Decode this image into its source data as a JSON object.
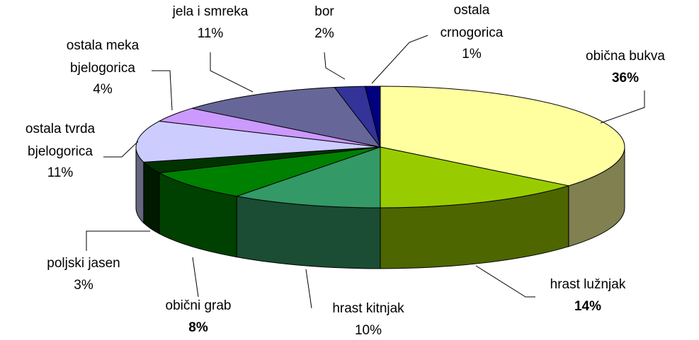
{
  "chart_data": {
    "type": "pie3d",
    "categories": [
      "obična bukva",
      "hrast lužnjak",
      "hrast kitnjak",
      "obični grab",
      "poljski jasen",
      "ostala tvrda bjelogorica",
      "ostala meka bjelogorica",
      "jela i smreka",
      "bor",
      "ostala crnogorica"
    ],
    "values": [
      36,
      14,
      10,
      8,
      3,
      11,
      4,
      11,
      2,
      1
    ],
    "value_labels": [
      "36%",
      "14%",
      "10%",
      "8%",
      "3%",
      "11%",
      "4%",
      "11%",
      "2%",
      "1%"
    ],
    "colors": [
      "#ffffa0",
      "#99cc00",
      "#339966",
      "#008000",
      "#003300",
      "#ccccff",
      "#cc99ff",
      "#666699",
      "#333399",
      "#000080"
    ],
    "bold_labels": [
      true,
      true,
      false,
      true,
      false,
      false,
      false,
      false,
      false,
      false
    ]
  }
}
